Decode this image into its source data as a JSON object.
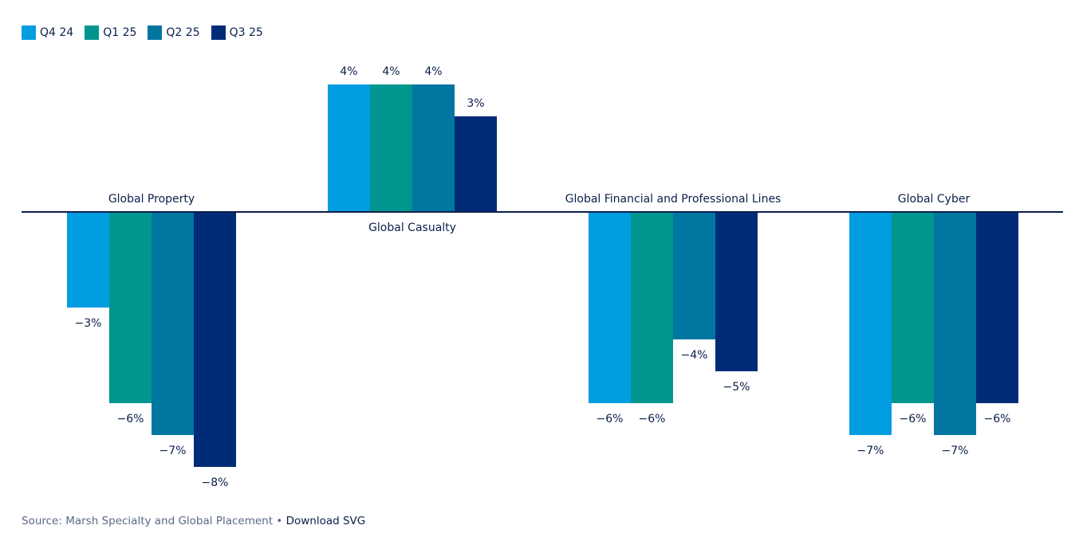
{
  "chart_data": {
    "type": "bar",
    "title": "",
    "xlabel": "",
    "ylabel": "",
    "ylim": [
      -8,
      4
    ],
    "grid": false,
    "legend_position": "top-left",
    "categories": [
      "Global Property",
      "Global Casualty",
      "Global Financial and Professional Lines",
      "Global Cyber"
    ],
    "series": [
      {
        "name": "Q4 24",
        "color": "#009de0",
        "values": [
          -3,
          4,
          -6,
          -7
        ],
        "labels": [
          "−3%",
          "4%",
          "−6%",
          "−7%"
        ]
      },
      {
        "name": "Q1 25",
        "color": "#00968f",
        "values": [
          -6,
          4,
          -6,
          -6
        ],
        "labels": [
          "−6%",
          "4%",
          "−6%",
          "−6%"
        ]
      },
      {
        "name": "Q2 25",
        "color": "#0076a0",
        "values": [
          -7,
          4,
          -4,
          -7
        ],
        "labels": [
          "−7%",
          "4%",
          "−4%",
          "−7%"
        ]
      },
      {
        "name": "Q3 25",
        "color": "#002c77",
        "values": [
          -8,
          3,
          -5,
          -6
        ],
        "labels": [
          "−8%",
          "3%",
          "−5%",
          "−6%"
        ]
      }
    ],
    "axis_color": "#0b1f4b"
  },
  "footer": {
    "source": "Source: Marsh Specialty and Global Placement",
    "separator": " • ",
    "download_label": "Download SVG"
  }
}
